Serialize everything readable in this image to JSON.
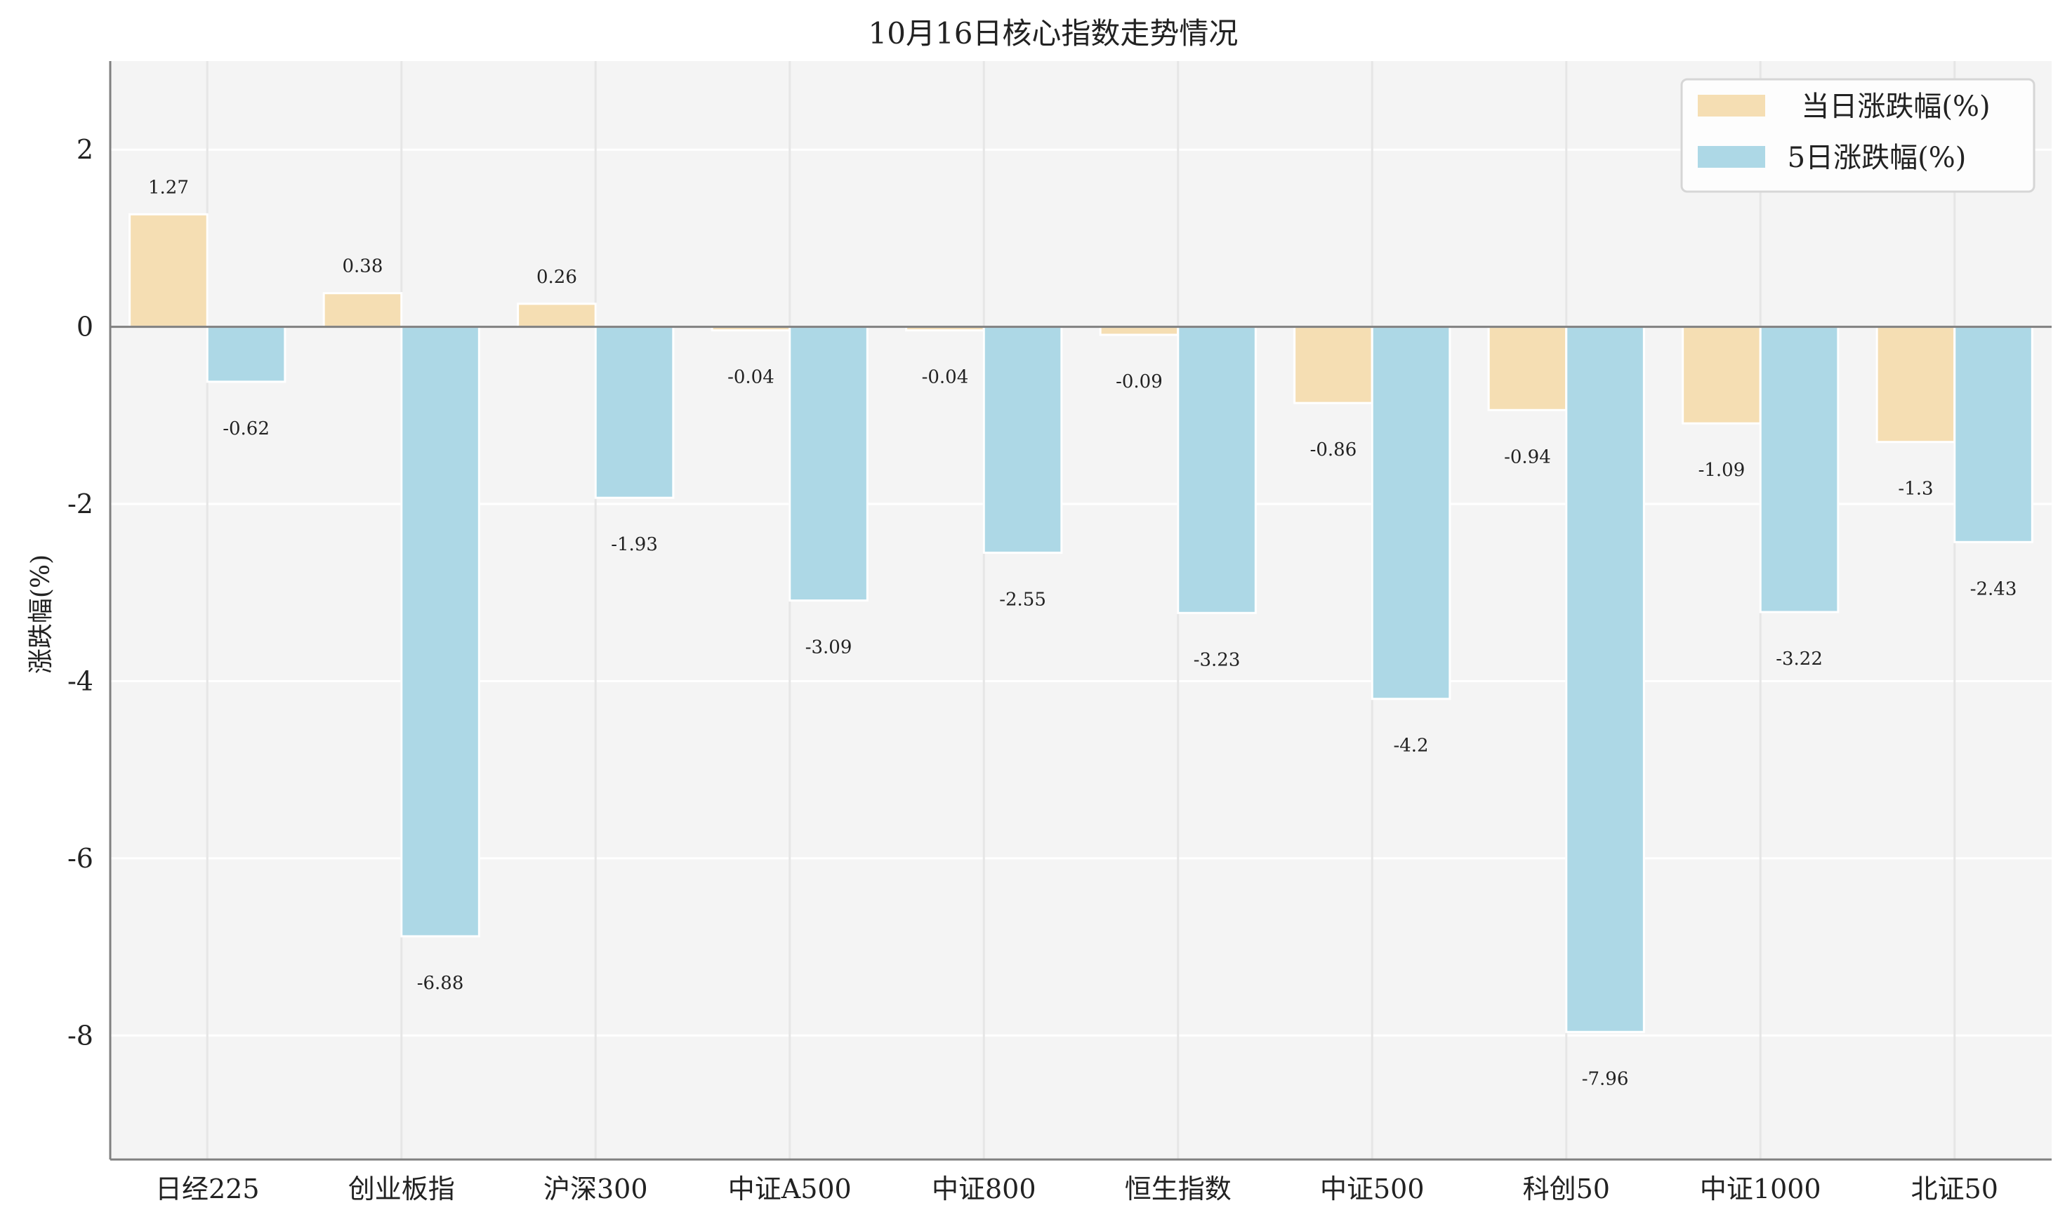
{
  "chart_data": {
    "type": "bar",
    "title": "10月16日核心指数走势情况",
    "xlabel": "",
    "ylabel": "涨跌幅(%)",
    "ylim": [
      -9.4,
      3.0
    ],
    "yticks": [
      2,
      0,
      -2,
      -4,
      -6,
      -8
    ],
    "grid": true,
    "legend_placement": "top-right",
    "categories": [
      "日经225",
      "创业板指",
      "沪深300",
      "中证A500",
      "中证800",
      "恒生指数",
      "中证500",
      "科创50",
      "中证1000",
      "北证50"
    ],
    "series": [
      {
        "name": "当日涨跌幅(%)",
        "color": "#F5DEB3",
        "values": [
          1.27,
          0.38,
          0.26,
          -0.04,
          -0.04,
          -0.09,
          -0.86,
          -0.94,
          -1.09,
          -1.3
        ]
      },
      {
        "name": "5日涨跌幅(%)",
        "color": "#ADD8E6",
        "values": [
          -0.62,
          -6.88,
          -1.93,
          -3.09,
          -2.55,
          -3.23,
          -4.2,
          -7.96,
          -3.22,
          -2.43
        ]
      }
    ],
    "background_color": "#F4F4F4"
  }
}
